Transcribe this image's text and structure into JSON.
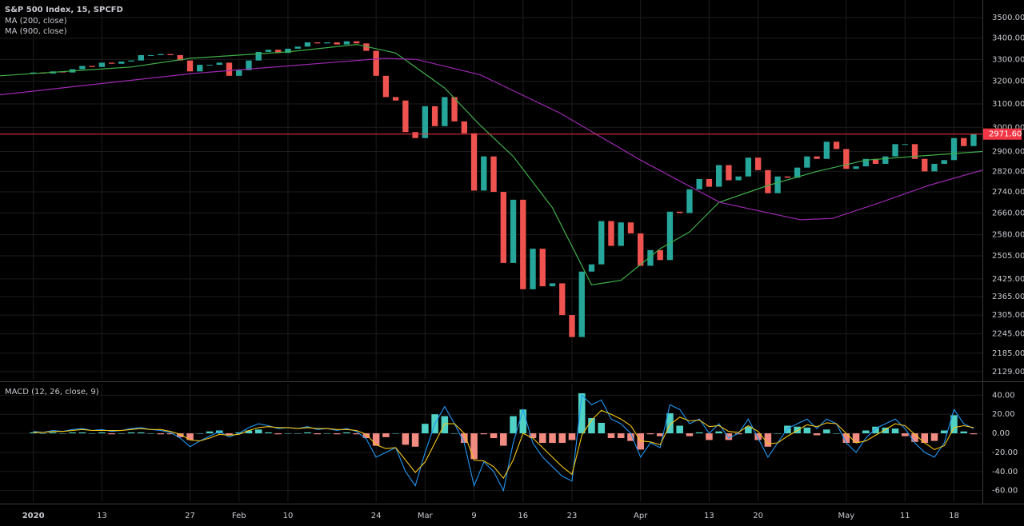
{
  "chart_data": [
    {
      "type": "candlestick",
      "title": "S&P 500 Index, 15, SPCFD",
      "log_scale": true,
      "grid": true,
      "up_color": "#26a69a",
      "down_color": "#ef5350",
      "values": [
        3240,
        3235,
        3245,
        3240,
        3255,
        3270,
        3265,
        3285,
        3280,
        3290,
        3295,
        3320,
        3320,
        3325,
        3320,
        3295,
        3245,
        3275,
        3275,
        3285,
        3225,
        3250,
        3295,
        3335,
        3345,
        3330,
        3350,
        3360,
        3380,
        3375,
        3380,
        3370,
        3385,
        3375,
        3340,
        3225,
        3130,
        3115,
        2980,
        2955,
        3090,
        3005,
        3130,
        3025,
        2975,
        2745,
        2880,
        2740,
        2480,
        2710,
        2390,
        2530,
        2400,
        2410,
        2305,
        2235,
        2450,
        2475,
        2630,
        2540,
        2625,
        2585,
        2470,
        2525,
        2490,
        2665,
        2660,
        2750,
        2790,
        2760,
        2845,
        2785,
        2800,
        2875,
        2825,
        2735,
        2800,
        2795,
        2835,
        2880,
        2870,
        2940,
        2910,
        2830,
        2840,
        2870,
        2850,
        2880,
        2930,
        2930,
        2870,
        2820,
        2850,
        2865,
        2955,
        2922,
        2971.6
      ],
      "series": [
        {
          "name": "MA (200, close)",
          "color": "#3fae49",
          "x": [
            -3.4,
            10,
            16,
            26,
            33,
            37,
            42,
            45.6,
            49,
            53,
            57,
            60,
            64,
            67,
            70,
            75,
            80,
            85,
            90,
            96.9
          ],
          "values": [
            3225,
            3265,
            3305,
            3335,
            3370,
            3330,
            3170,
            3010,
            2880,
            2680,
            2405,
            2420,
            2530,
            2590,
            2700,
            2765,
            2820,
            2865,
            2880,
            2900
          ]
        },
        {
          "name": "MA (900, close)",
          "color": "#9c27b0",
          "x": [
            -3.4,
            16.2,
            35.8,
            39.1,
            45.6,
            53.8,
            62,
            70.1,
            78.3,
            81.6,
            86.5,
            91.4,
            96.9
          ],
          "values": [
            3140,
            3235,
            3305,
            3300,
            3230,
            3060,
            2865,
            2700,
            2635,
            2640,
            2700,
            2765,
            2825
          ]
        }
      ],
      "last_price": {
        "value": 2971.6,
        "label": "2971.60"
      },
      "last_price_color": "#f23645",
      "xlim": [
        -3.4,
        96.9
      ],
      "ylim": [
        2105,
        3587
      ],
      "yticks": [
        {
          "value": 3500,
          "label": "3500.00"
        },
        {
          "value": 3400,
          "label": "3400.00"
        },
        {
          "value": 3300,
          "label": "3300.00"
        },
        {
          "value": 3200,
          "label": "3200.00"
        },
        {
          "value": 3100,
          "label": "3100.00"
        },
        {
          "value": 3000,
          "label": "3000.00"
        },
        {
          "value": 2900,
          "label": "2900.00"
        },
        {
          "value": 2820,
          "label": "2820.00"
        },
        {
          "value": 2740,
          "label": "2740.00"
        },
        {
          "value": 2660,
          "label": "2660.00"
        },
        {
          "value": 2580,
          "label": "2580.00"
        },
        {
          "value": 2505,
          "label": "2505.00"
        },
        {
          "value": 2425,
          "label": "2425.00"
        },
        {
          "value": 2365,
          "label": "2365.00"
        },
        {
          "value": 2305,
          "label": "2305.00"
        },
        {
          "value": 2245,
          "label": "2245.00"
        },
        {
          "value": 2185,
          "label": "2185.00"
        },
        {
          "value": 2129,
          "label": "2129.00"
        }
      ]
    },
    {
      "type": "macd",
      "title": "MACD (12, 26, close, 9)",
      "grid": true,
      "series": [
        {
          "color": "#2196f3",
          "values": [
            2,
            1,
            3,
            2,
            4,
            5,
            3,
            4,
            2,
            3,
            5,
            6,
            4,
            3,
            1,
            -5,
            -14,
            -8,
            -3,
            2,
            -4,
            0,
            6,
            10,
            8,
            5,
            6,
            5,
            7,
            4,
            5,
            3,
            5,
            2,
            -6,
            -25,
            -20,
            -15,
            -40,
            -55,
            -20,
            10,
            28,
            10,
            -10,
            -55,
            -30,
            -40,
            -60,
            -10,
            25,
            -10,
            -25,
            -35,
            -45,
            -50,
            40,
            30,
            35,
            15,
            10,
            0,
            -25,
            -10,
            -15,
            30,
            25,
            10,
            15,
            0,
            10,
            -5,
            0,
            15,
            -5,
            -25,
            -10,
            5,
            10,
            15,
            5,
            15,
            10,
            -10,
            -20,
            -5,
            5,
            10,
            15,
            5,
            -10,
            -20,
            -25,
            -10,
            25,
            10,
            5
          ]
        },
        {
          "color": "#f5c518",
          "values": [
            1,
            1,
            2,
            2,
            3,
            4,
            3,
            3,
            3,
            3,
            4,
            5,
            4,
            4,
            2,
            -1,
            -7,
            -8,
            -5,
            -1,
            -2,
            -1,
            3,
            6,
            7,
            6,
            6,
            5,
            6,
            5,
            5,
            4,
            4,
            3,
            -1,
            -12,
            -16,
            -15,
            -28,
            -41,
            -30,
            -10,
            10,
            10,
            0,
            -28,
            -29,
            -35,
            -47,
            -28,
            0,
            -5,
            -15,
            -25,
            -35,
            -43,
            -2,
            14,
            24,
            20,
            15,
            8,
            -8,
            -9,
            -12,
            9,
            17,
            13,
            14,
            7,
            8,
            2,
            1,
            8,
            2,
            -11,
            -10,
            -3,
            3,
            9,
            7,
            11,
            10,
            0,
            -10,
            -8,
            -2,
            4,
            10,
            8,
            -1,
            -10,
            -17,
            -13,
            6,
            8,
            6
          ]
        }
      ],
      "histogram": {
        "up_color": "#4fd1c5",
        "down_color": "#f28b82",
        "values": [
          1,
          0,
          1,
          0,
          1,
          1,
          0,
          1,
          -1,
          0,
          1,
          1,
          0,
          -1,
          -1,
          -4,
          -7,
          0,
          2,
          3,
          -2,
          1,
          3,
          4,
          1,
          -1,
          0,
          0,
          1,
          -1,
          0,
          -1,
          1,
          -1,
          -5,
          -13,
          -4,
          0,
          -12,
          -14,
          10,
          20,
          18,
          0,
          -10,
          -27,
          -1,
          -5,
          -13,
          18,
          25,
          -5,
          -10,
          -10,
          -10,
          -7,
          42,
          16,
          11,
          -5,
          -5,
          -8,
          -17,
          -1,
          -3,
          21,
          8,
          -3,
          1,
          -7,
          2,
          -7,
          -1,
          7,
          -7,
          -14,
          0,
          8,
          7,
          6,
          -2,
          4,
          0,
          -10,
          -10,
          3,
          7,
          6,
          5,
          -3,
          -9,
          -10,
          -8,
          3,
          19,
          2,
          -1
        ]
      },
      "xlim": [
        -3.4,
        96.9
      ],
      "ylim": [
        -72,
        52
      ],
      "yticks": [
        {
          "value": 40,
          "label": "40.00"
        },
        {
          "value": 20,
          "label": "20.00"
        },
        {
          "value": 0,
          "label": "0.00"
        },
        {
          "value": -20,
          "label": "-20.00"
        },
        {
          "value": -40,
          "label": "-40.00"
        },
        {
          "value": -60,
          "label": "-60.00"
        }
      ],
      "xticks": [
        {
          "value": 0,
          "label": "2020"
        },
        {
          "value": 7,
          "label": "13"
        },
        {
          "value": 16,
          "label": "27"
        },
        {
          "value": 21,
          "label": "Feb"
        },
        {
          "value": 26,
          "label": "10"
        },
        {
          "value": 35,
          "label": "24"
        },
        {
          "value": 40,
          "label": "Mar"
        },
        {
          "value": 45,
          "label": "9"
        },
        {
          "value": 50,
          "label": "16"
        },
        {
          "value": 55,
          "label": "23"
        },
        {
          "value": 62,
          "label": "Apr"
        },
        {
          "value": 69,
          "label": "13"
        },
        {
          "value": 74,
          "label": "20"
        },
        {
          "value": 83,
          "label": "May"
        },
        {
          "value": 89,
          "label": "11"
        },
        {
          "value": 94,
          "label": "18"
        }
      ]
    }
  ]
}
